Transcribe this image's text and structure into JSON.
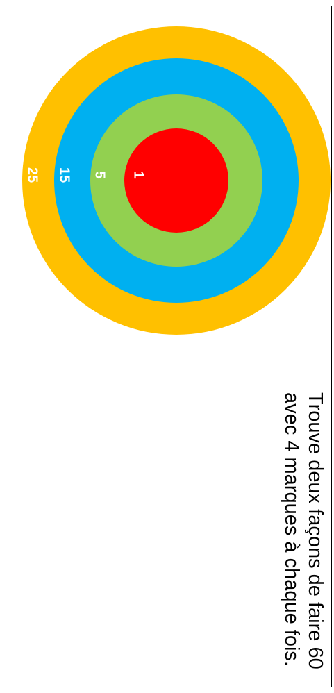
{
  "target": {
    "rings": [
      {
        "label": "25",
        "color": "#FFC000"
      },
      {
        "label": "15",
        "color": "#00B0F0"
      },
      {
        "label": "5",
        "color": "#92D050"
      },
      {
        "label": "1",
        "color": "#FF0000"
      }
    ]
  },
  "question": {
    "text": "Trouve deux façons de faire 60 avec 4 marques à chaque fois."
  }
}
